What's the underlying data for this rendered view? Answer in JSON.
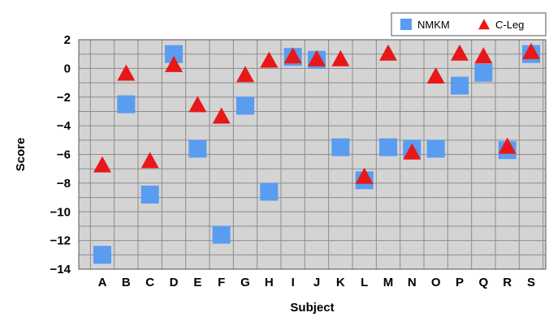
{
  "chart_data": {
    "type": "scatter",
    "title": "",
    "xlabel": "Subject",
    "ylabel": "Score",
    "ylim": [
      -14,
      2
    ],
    "yticks": [
      2,
      0,
      -2,
      -4,
      -6,
      -8,
      -10,
      -12,
      -14
    ],
    "grid": true,
    "legend_position": "top-right",
    "categories": [
      "A",
      "B",
      "C",
      "D",
      "E",
      "F",
      "G",
      "H",
      "I",
      "J",
      "K",
      "L",
      "M",
      "N",
      "O",
      "P",
      "Q",
      "R",
      "S"
    ],
    "series": [
      {
        "name": "NMKM",
        "marker": "square",
        "color": "#5a9cf0",
        "values": [
          -13.0,
          -2.5,
          -8.8,
          1.0,
          -5.6,
          -11.6,
          -2.6,
          -8.6,
          0.8,
          0.6,
          -5.5,
          -7.8,
          -5.5,
          -5.6,
          -5.6,
          -1.2,
          -0.3,
          -5.7,
          1.0
        ]
      },
      {
        "name": "C-Leg",
        "marker": "triangle",
        "color": "#e81818",
        "values": [
          -6.8,
          -0.4,
          -6.5,
          0.2,
          -2.6,
          -3.4,
          -0.5,
          0.5,
          0.8,
          0.6,
          0.6,
          -7.6,
          1.0,
          -5.9,
          -0.6,
          1.0,
          0.8,
          -5.5,
          1.1
        ]
      }
    ]
  },
  "colors": {
    "plot_background": "#d4d4d4",
    "grid_line": "#8c8c8c"
  }
}
